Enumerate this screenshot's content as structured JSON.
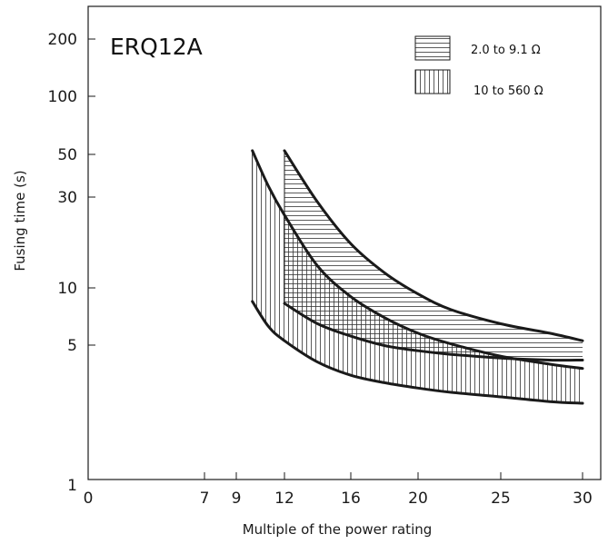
{
  "chart_data": {
    "type": "area",
    "title": "ERQ12A",
    "xlabel": "Multiple of the power rating",
    "ylabel": "Fusing time (s)",
    "y_scale": "log",
    "ylim": [
      1,
      300
    ],
    "x_ticks": [
      "0",
      "7",
      "9",
      "12",
      "16",
      "20",
      "25",
      "30"
    ],
    "y_ticks": [
      "1",
      "5",
      "10",
      "30",
      "50",
      "100",
      "200"
    ],
    "grid": false,
    "legend_position": "top-right",
    "colors": {
      "line": "#1a1a1a",
      "hatch": "#333333",
      "axis": "#1a1a1a"
    },
    "series": [
      {
        "name": "2.0 to 9.1 Ω",
        "hatch": "horizontal",
        "x_range": [
          12,
          30
        ],
        "upper": {
          "x": [
            12,
            14,
            16,
            18,
            20,
            22,
            25,
            28,
            30
          ],
          "y": [
            52,
            28,
            17,
            12,
            9.3,
            7.7,
            6.5,
            5.8,
            5.3
          ]
        },
        "lower": {
          "x": [
            12,
            14,
            16,
            18,
            20,
            22,
            25,
            28,
            30
          ],
          "y": [
            8.3,
            6.5,
            5.6,
            5.0,
            4.7,
            4.5,
            4.3,
            4.2,
            4.2
          ]
        }
      },
      {
        "name": "10 to 560 Ω",
        "hatch": "vertical",
        "x_range": [
          10,
          30
        ],
        "upper": {
          "x": [
            10,
            11,
            12,
            14,
            16,
            18,
            20,
            22,
            25,
            28,
            30
          ],
          "y": [
            52,
            34,
            24,
            13,
            9.0,
            7.0,
            5.8,
            5.1,
            4.4,
            4.0,
            3.8
          ]
        },
        "lower": {
          "x": [
            10,
            11,
            12,
            14,
            16,
            18,
            20,
            22,
            25,
            28,
            30
          ],
          "y": [
            8.5,
            6.3,
            5.3,
            4.1,
            3.5,
            3.2,
            3.0,
            2.85,
            2.7,
            2.55,
            2.5
          ]
        }
      }
    ]
  }
}
